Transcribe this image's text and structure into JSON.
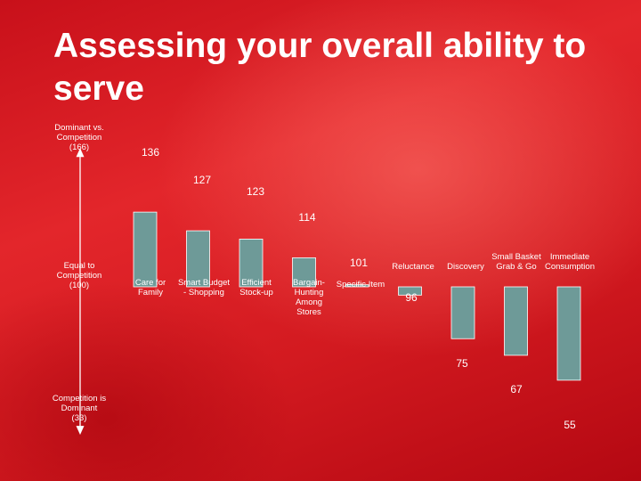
{
  "slide": {
    "title": "Assessing your overall ability to serve"
  },
  "colors": {
    "bar": "#6e9a98",
    "bar_edge": "#ffffff",
    "axis": "#ffffff",
    "text": "#ffffff"
  },
  "chart_data": {
    "type": "bar",
    "baseline": 100,
    "ylim": [
      33,
      166
    ],
    "y_markers": [
      {
        "value": 166,
        "lines": [
          "Dominant vs.",
          "Competition",
          "(166)"
        ]
      },
      {
        "value": 100,
        "lines": [
          "Equal to",
          "Competition",
          "(100)"
        ]
      },
      {
        "value": 33,
        "lines": [
          "Competition is",
          "Dominant",
          "(33)"
        ]
      }
    ],
    "categories": [
      {
        "lines": [
          "Care for",
          "Family"
        ],
        "value": 136
      },
      {
        "lines": [
          "Smart Budget",
          "- Shopping"
        ],
        "value": 127
      },
      {
        "lines": [
          "Efficient",
          "Stock-up"
        ],
        "value": 123
      },
      {
        "lines": [
          "Bargain-",
          "Hunting",
          "Among",
          "Stores"
        ],
        "value": 114
      },
      {
        "lines": [
          "Specific Item"
        ],
        "value": 101
      },
      {
        "lines": [
          "Reluctance"
        ],
        "value": 96
      },
      {
        "lines": [
          "Discovery"
        ],
        "value": 75
      },
      {
        "lines": [
          "Small Basket",
          "Grab & Go"
        ],
        "value": 67
      },
      {
        "lines": [
          "Immediate",
          "Consumption"
        ],
        "value": 55
      }
    ]
  }
}
